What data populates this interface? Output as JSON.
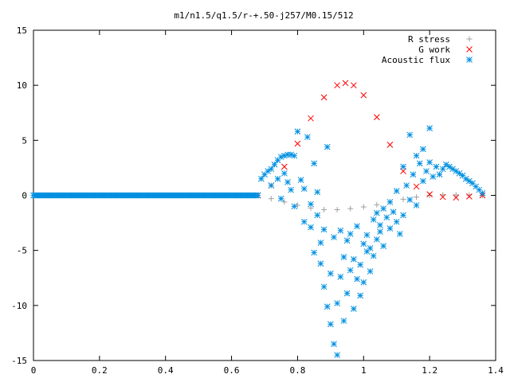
{
  "chart_data": {
    "type": "scatter",
    "title": "m1/n1.5/q1.5/r-+.50-j257/M0.15/512",
    "xlabel": "",
    "ylabel": "",
    "xlim": [
      0,
      1.4
    ],
    "ylim": [
      -15,
      15
    ],
    "x_ticks": [
      "0",
      "0.2",
      "0.4",
      "0.6",
      "0.8",
      "1",
      "1.2",
      "1.4"
    ],
    "y_ticks": [
      "15",
      "10",
      "5",
      "0",
      "-5",
      "-10",
      "-15"
    ],
    "grid": false,
    "legend_position": "top-right",
    "series": [
      {
        "name": "R stress",
        "marker": "plus",
        "color": "#a0a0a0",
        "points": [
          [
            0.68,
            0.0
          ],
          [
            0.72,
            -0.3
          ],
          [
            0.76,
            -0.6
          ],
          [
            0.8,
            -0.9
          ],
          [
            0.84,
            -1.15
          ],
          [
            0.88,
            -1.3
          ],
          [
            0.92,
            -1.3
          ],
          [
            0.96,
            -1.2
          ],
          [
            1.0,
            -1.05
          ],
          [
            1.04,
            -0.85
          ],
          [
            1.08,
            -0.6
          ],
          [
            1.12,
            -0.35
          ],
          [
            1.16,
            -0.15
          ],
          [
            1.2,
            0.0
          ],
          [
            1.24,
            0.05
          ],
          [
            1.28,
            0.05
          ],
          [
            1.32,
            0.03
          ],
          [
            1.36,
            0.0
          ]
        ]
      },
      {
        "name": "G work",
        "marker": "cross",
        "color": "#ff0000",
        "points": [
          [
            0.68,
            0.0
          ],
          [
            0.72,
            0.9
          ],
          [
            0.76,
            2.6
          ],
          [
            0.8,
            4.7
          ],
          [
            0.84,
            7.0
          ],
          [
            0.88,
            8.9
          ],
          [
            0.92,
            10.0
          ],
          [
            0.945,
            10.2
          ],
          [
            0.97,
            10.0
          ],
          [
            1.0,
            9.1
          ],
          [
            1.04,
            7.1
          ],
          [
            1.08,
            4.6
          ],
          [
            1.12,
            2.2
          ],
          [
            1.16,
            0.8
          ],
          [
            1.2,
            0.1
          ],
          [
            1.24,
            -0.15
          ],
          [
            1.28,
            -0.2
          ],
          [
            1.32,
            -0.1
          ],
          [
            1.36,
            0.0
          ]
        ]
      },
      {
        "name": "Acoustic flux",
        "marker": "star",
        "color": "#008fe0",
        "points": [
          [
            0.69,
            1.5
          ],
          [
            0.7,
            1.9
          ],
          [
            0.71,
            2.2
          ],
          [
            0.72,
            2.4
          ],
          [
            0.73,
            2.8
          ],
          [
            0.74,
            3.2
          ],
          [
            0.75,
            3.5
          ],
          [
            0.76,
            3.6
          ],
          [
            0.77,
            3.7
          ],
          [
            0.78,
            3.7
          ],
          [
            0.79,
            3.6
          ],
          [
            0.72,
            0.9
          ],
          [
            0.74,
            1.5
          ],
          [
            0.75,
            -0.3
          ],
          [
            0.76,
            2.0
          ],
          [
            0.77,
            1.2
          ],
          [
            0.78,
            0.5
          ],
          [
            0.79,
            -1.0
          ],
          [
            0.8,
            5.8
          ],
          [
            0.81,
            1.4
          ],
          [
            0.82,
            -2.4
          ],
          [
            0.82,
            0.6
          ],
          [
            0.83,
            5.3
          ],
          [
            0.84,
            -2.9
          ],
          [
            0.84,
            -0.8
          ],
          [
            0.85,
            2.9
          ],
          [
            0.85,
            -5.2
          ],
          [
            0.86,
            -1.8
          ],
          [
            0.86,
            0.3
          ],
          [
            0.87,
            -4.3
          ],
          [
            0.87,
            -6.2
          ],
          [
            0.88,
            -8.3
          ],
          [
            0.88,
            -3.1
          ],
          [
            0.89,
            -10.1
          ],
          [
            0.89,
            4.4
          ],
          [
            0.9,
            -7.1
          ],
          [
            0.9,
            -11.7
          ],
          [
            0.91,
            -13.5
          ],
          [
            0.91,
            -3.8
          ],
          [
            0.92,
            -9.8
          ],
          [
            0.92,
            -14.5
          ],
          [
            0.93,
            -7.4
          ],
          [
            0.93,
            -3.2
          ],
          [
            0.94,
            -11.4
          ],
          [
            0.94,
            -5.6
          ],
          [
            0.95,
            -8.9
          ],
          [
            0.95,
            -4.1
          ],
          [
            0.96,
            -6.8
          ],
          [
            0.96,
            -3.5
          ],
          [
            0.97,
            -10.3
          ],
          [
            0.97,
            -5.8
          ],
          [
            0.98,
            -7.6
          ],
          [
            0.98,
            -2.8
          ],
          [
            0.99,
            -6.3
          ],
          [
            0.99,
            -9.1
          ],
          [
            1.0,
            -4.4
          ],
          [
            1.0,
            -7.9
          ],
          [
            1.01,
            -5.1
          ],
          [
            1.01,
            -3.6
          ],
          [
            1.02,
            -6.9
          ],
          [
            1.02,
            -4.8
          ],
          [
            1.03,
            -2.2
          ],
          [
            1.03,
            -5.5
          ],
          [
            1.04,
            -4.0
          ],
          [
            1.04,
            -1.6
          ],
          [
            1.05,
            -3.3
          ],
          [
            1.05,
            -2.7
          ],
          [
            1.06,
            -1.2
          ],
          [
            1.06,
            -4.6
          ],
          [
            1.07,
            -2.0
          ],
          [
            1.08,
            -0.6
          ],
          [
            1.08,
            -3.0
          ],
          [
            1.09,
            -1.5
          ],
          [
            1.1,
            0.4
          ],
          [
            1.1,
            -2.4
          ],
          [
            1.11,
            -3.5
          ],
          [
            1.12,
            -1.8
          ],
          [
            1.12,
            2.6
          ],
          [
            1.13,
            0.9
          ],
          [
            1.14,
            5.5
          ],
          [
            1.14,
            -0.4
          ],
          [
            1.15,
            1.9
          ],
          [
            1.16,
            3.6
          ],
          [
            1.16,
            -0.9
          ],
          [
            1.17,
            2.9
          ],
          [
            1.18,
            4.2
          ],
          [
            1.18,
            1.3
          ],
          [
            1.19,
            2.2
          ],
          [
            1.2,
            3.0
          ],
          [
            1.2,
            6.1
          ],
          [
            1.21,
            1.7
          ],
          [
            1.22,
            2.6
          ],
          [
            1.23,
            1.9
          ],
          [
            1.24,
            2.4
          ],
          [
            1.25,
            2.8
          ],
          [
            1.26,
            2.6
          ],
          [
            1.27,
            2.4
          ],
          [
            1.28,
            2.2
          ],
          [
            1.29,
            2.0
          ],
          [
            1.3,
            1.8
          ],
          [
            1.31,
            1.5
          ],
          [
            1.32,
            1.3
          ],
          [
            1.33,
            1.1
          ],
          [
            1.34,
            0.8
          ],
          [
            1.35,
            0.5
          ],
          [
            1.36,
            0.2
          ]
        ]
      }
    ]
  }
}
